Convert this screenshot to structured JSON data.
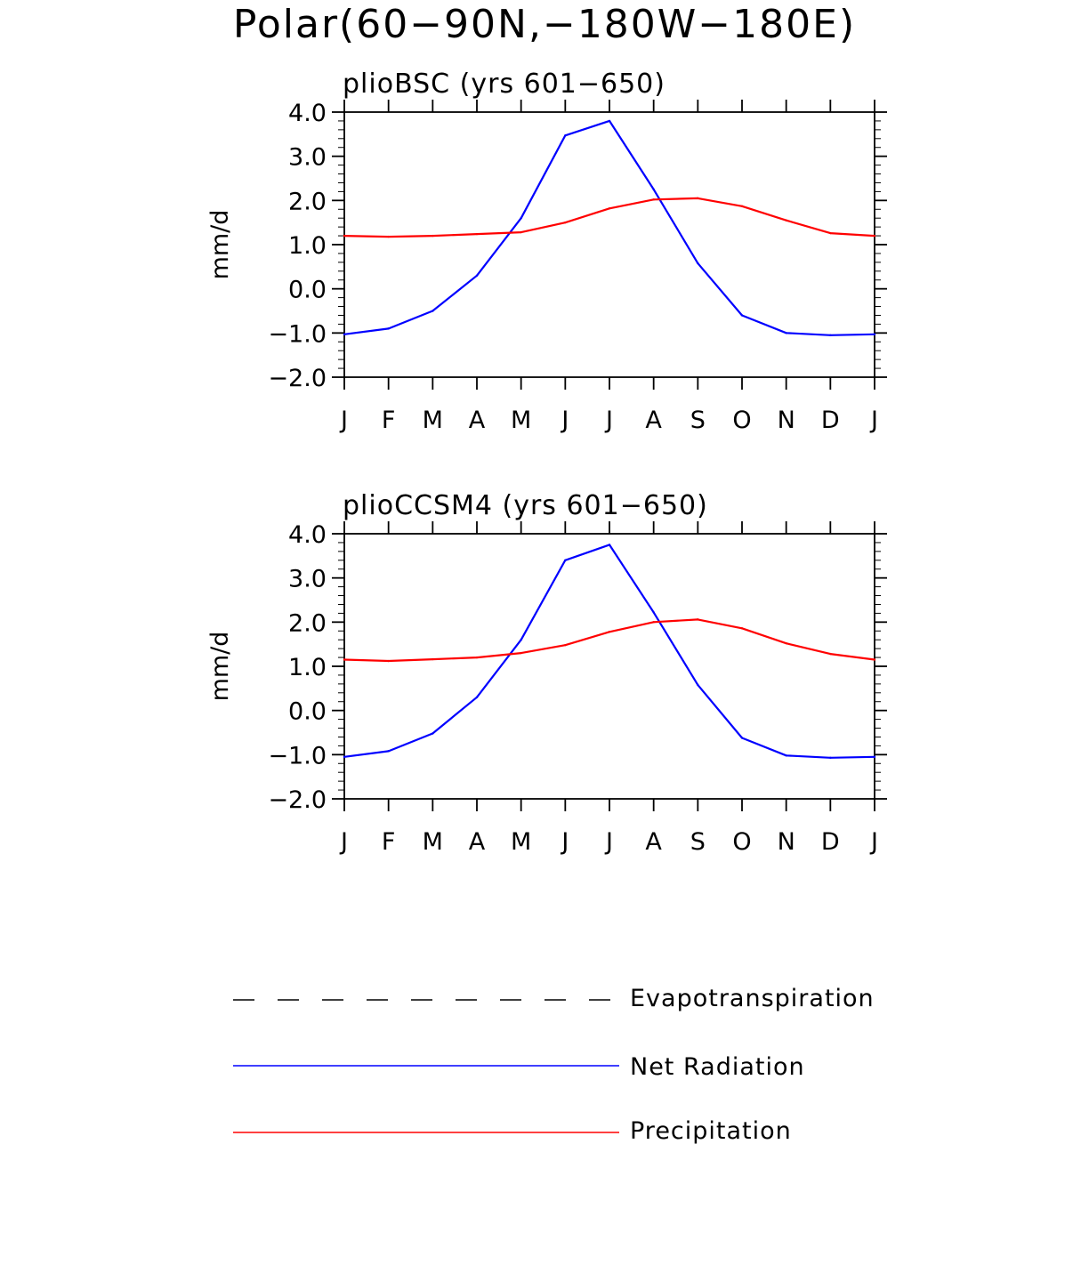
{
  "figure_title": "Polar(60−90N,−180W−180E)",
  "legend": [
    {
      "label": "Evapotranspiration",
      "color": "#000000",
      "style": "dashed"
    },
    {
      "label": "Net Radiation",
      "color": "#0000ff",
      "style": "solid"
    },
    {
      "label": "Precipitation",
      "color": "#ff0000",
      "style": "solid"
    }
  ],
  "chart_data": [
    {
      "type": "line",
      "title": "plioBSC (yrs 601−650)",
      "ylabel": "mm/d",
      "xlabel": "",
      "categories": [
        "J",
        "F",
        "M",
        "A",
        "M",
        "J",
        "J",
        "A",
        "S",
        "O",
        "N",
        "D",
        "J"
      ],
      "ylim": [
        -2.0,
        4.0
      ],
      "yticks": [
        "4.0",
        "3.0",
        "2.0",
        "1.0",
        "0.0",
        "−1.0",
        "−2.0"
      ],
      "grid": false,
      "series": [
        {
          "name": "Net Radiation",
          "color": "#0000ff",
          "values": [
            -1.03,
            -0.9,
            -0.5,
            0.3,
            1.6,
            3.47,
            3.8,
            2.25,
            0.58,
            -0.6,
            -1.0,
            -1.05,
            -1.03
          ]
        },
        {
          "name": "Precipitation",
          "color": "#ff0000",
          "values": [
            1.2,
            1.18,
            1.2,
            1.24,
            1.28,
            1.5,
            1.82,
            2.02,
            2.05,
            1.87,
            1.55,
            1.26,
            1.2
          ]
        }
      ]
    },
    {
      "type": "line",
      "title": "plioCCSM4 (yrs 601−650)",
      "ylabel": "mm/d",
      "xlabel": "",
      "categories": [
        "J",
        "F",
        "M",
        "A",
        "M",
        "J",
        "J",
        "A",
        "S",
        "O",
        "N",
        "D",
        "J"
      ],
      "ylim": [
        -2.0,
        4.0
      ],
      "yticks": [
        "4.0",
        "3.0",
        "2.0",
        "1.0",
        "0.0",
        "−1.0",
        "−2.0"
      ],
      "grid": false,
      "series": [
        {
          "name": "Net Radiation",
          "color": "#0000ff",
          "values": [
            -1.05,
            -0.92,
            -0.52,
            0.3,
            1.6,
            3.4,
            3.75,
            2.22,
            0.58,
            -0.62,
            -1.02,
            -1.07,
            -1.05
          ]
        },
        {
          "name": "Precipitation",
          "color": "#ff0000",
          "values": [
            1.15,
            1.12,
            1.16,
            1.2,
            1.3,
            1.48,
            1.78,
            2.0,
            2.06,
            1.86,
            1.52,
            1.28,
            1.15
          ]
        }
      ]
    }
  ]
}
